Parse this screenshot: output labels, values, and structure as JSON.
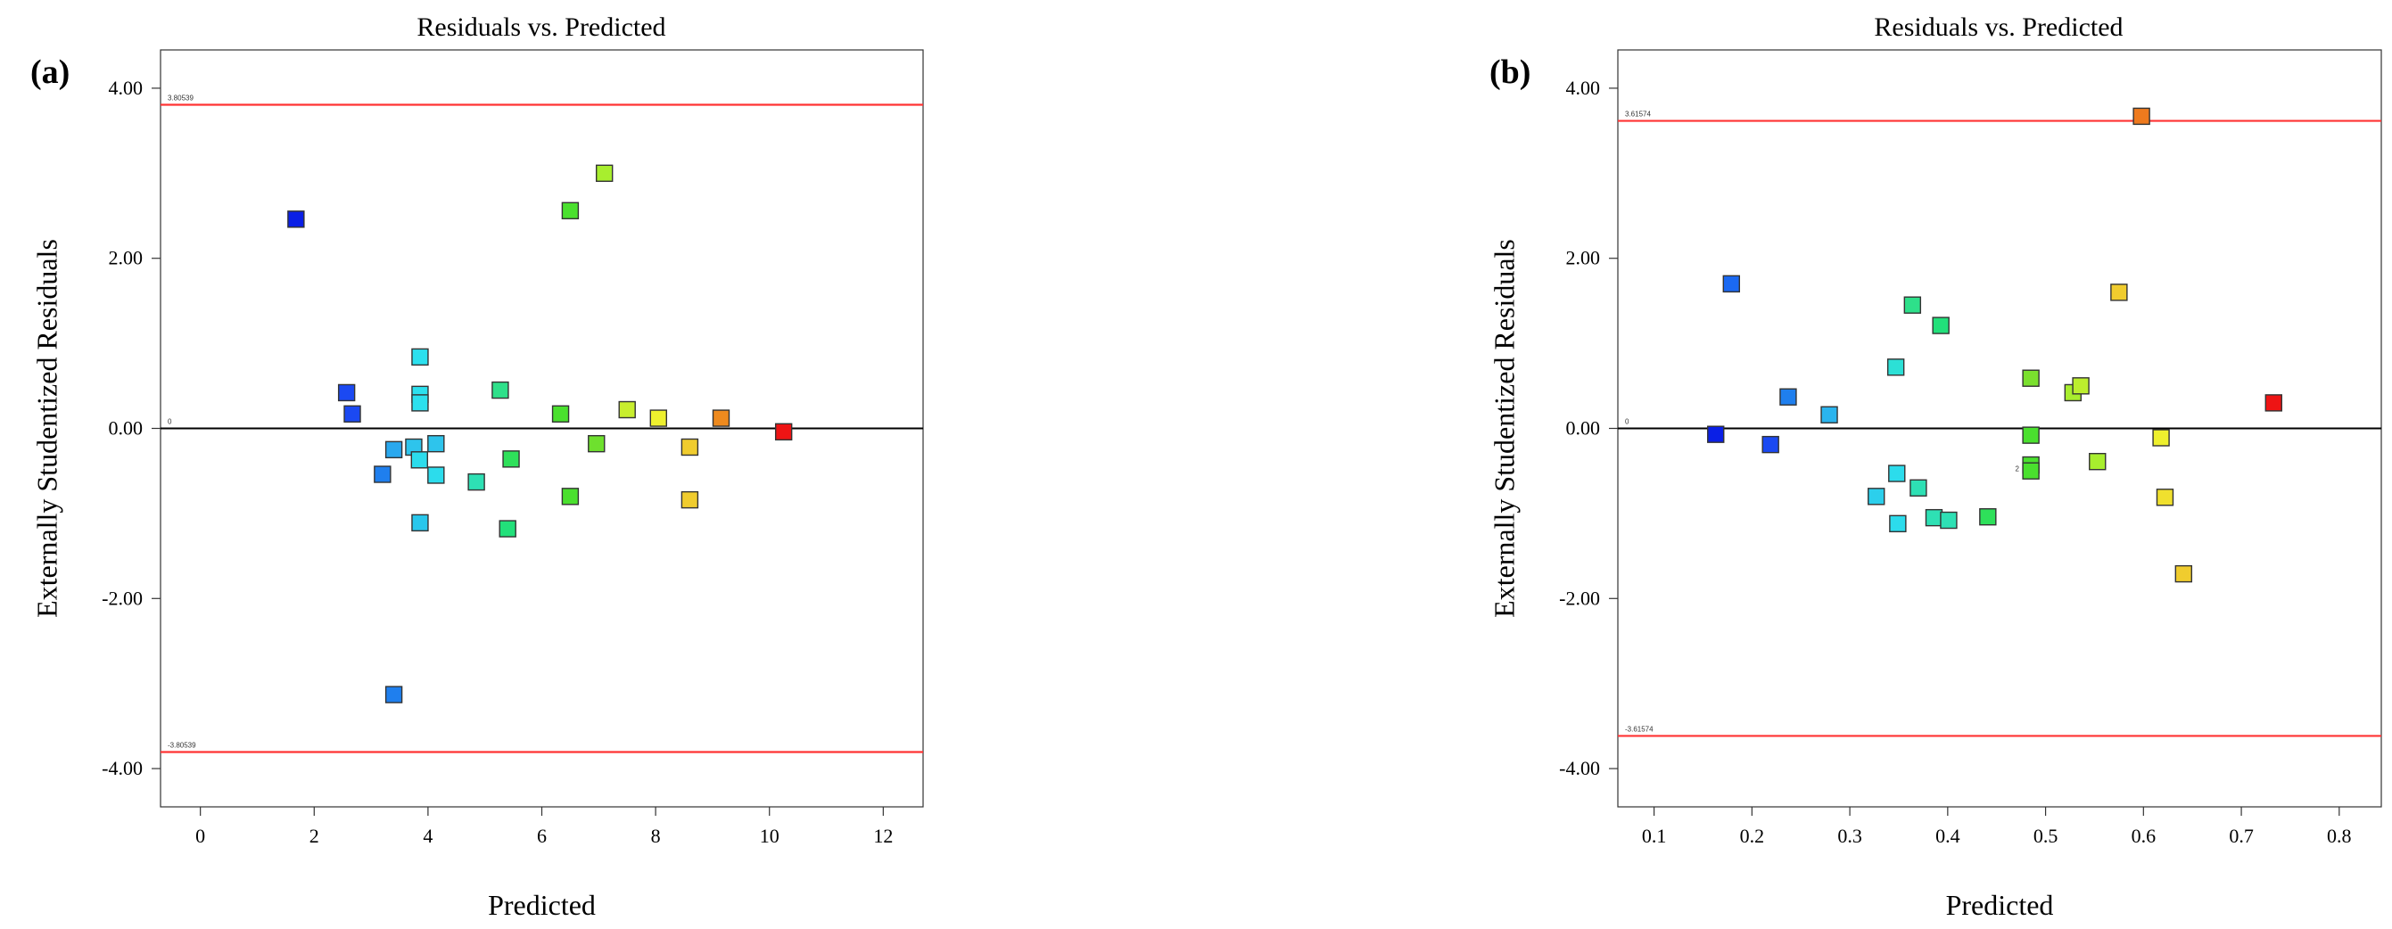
{
  "chart_data": [
    {
      "type": "scatter",
      "panel_label": "(a)",
      "title": "Residuals vs. Predicted",
      "xlabel": "Predicted",
      "ylabel": "Externally Studentized Residuals",
      "xlim": [
        -0.7,
        12.7
      ],
      "ylim": [
        -4.45,
        4.45
      ],
      "x_ticks": [
        "0",
        "2",
        "4",
        "6",
        "8",
        "10",
        "12"
      ],
      "x_tick_values": [
        0,
        2,
        4,
        6,
        8,
        10,
        12
      ],
      "y_ticks": [
        "4.00",
        "2.00",
        "0.00",
        "-2.00",
        "-4.00"
      ],
      "y_tick_values": [
        4,
        2,
        0,
        -2,
        -4
      ],
      "limit_lines": [
        {
          "label": "3.80539",
          "value": 3.80539,
          "color": "#ff3333"
        },
        {
          "label": "0",
          "value": 0,
          "color": "#000000"
        },
        {
          "label": "-3.80539",
          "value": -3.80539,
          "color": "#ff3333"
        }
      ],
      "points": [
        {
          "x": 1.68,
          "y": 2.46,
          "color": "#0a1fe6"
        },
        {
          "x": 2.57,
          "y": 0.42,
          "color": "#1b49f2"
        },
        {
          "x": 2.67,
          "y": 0.17,
          "color": "#1b49f2"
        },
        {
          "x": 3.2,
          "y": -0.54,
          "color": "#1f7fee"
        },
        {
          "x": 3.4,
          "y": -0.25,
          "color": "#2aa8ee"
        },
        {
          "x": 3.4,
          "y": -3.13,
          "color": "#1f7fee"
        },
        {
          "x": 3.75,
          "y": -0.22,
          "color": "#2ec4ec"
        },
        {
          "x": 3.85,
          "y": -0.37,
          "color": "#2cdcec"
        },
        {
          "x": 3.86,
          "y": 0.84,
          "color": "#2ce0ee"
        },
        {
          "x": 3.86,
          "y": 0.4,
          "color": "#2ce0ee"
        },
        {
          "x": 3.86,
          "y": 0.3,
          "color": "#2ce0ee"
        },
        {
          "x": 3.86,
          "y": -1.11,
          "color": "#28c7ec"
        },
        {
          "x": 4.14,
          "y": -0.18,
          "color": "#2ec4ec"
        },
        {
          "x": 4.14,
          "y": -0.55,
          "color": "#2cdcec"
        },
        {
          "x": 4.85,
          "y": -0.63,
          "color": "#2ee0b4"
        },
        {
          "x": 5.27,
          "y": 0.45,
          "color": "#2ee08a"
        },
        {
          "x": 5.4,
          "y": -1.18,
          "color": "#22e07a"
        },
        {
          "x": 5.46,
          "y": -0.36,
          "color": "#2ee05a"
        },
        {
          "x": 6.33,
          "y": 0.17,
          "color": "#4ae02e"
        },
        {
          "x": 6.5,
          "y": 2.56,
          "color": "#4ae02e"
        },
        {
          "x": 6.5,
          "y": -0.8,
          "color": "#4ae02e"
        },
        {
          "x": 6.96,
          "y": -0.18,
          "color": "#6ee02e"
        },
        {
          "x": 7.1,
          "y": 3.0,
          "color": "#a8ee2e"
        },
        {
          "x": 7.5,
          "y": 0.22,
          "color": "#c8ee2e"
        },
        {
          "x": 8.05,
          "y": 0.12,
          "color": "#eef02e"
        },
        {
          "x": 8.6,
          "y": -0.22,
          "color": "#f0cc2e"
        },
        {
          "x": 8.6,
          "y": -0.84,
          "color": "#f0cc2e"
        },
        {
          "x": 9.15,
          "y": 0.12,
          "color": "#ee8a1e"
        },
        {
          "x": 10.25,
          "y": -0.04,
          "color": "#ee1414"
        }
      ]
    },
    {
      "type": "scatter",
      "panel_label": "(b)",
      "title": "Residuals vs. Predicted",
      "xlabel": "Predicted",
      "ylabel": "Externally Studentized Residuals",
      "xlim": [
        0.063,
        0.843
      ],
      "ylim": [
        -4.45,
        4.45
      ],
      "x_ticks": [
        "0.1",
        "0.2",
        "0.3",
        "0.4",
        "0.5",
        "0.6",
        "0.7",
        "0.8"
      ],
      "x_tick_values": [
        0.1,
        0.2,
        0.3,
        0.4,
        0.5,
        0.6,
        0.7,
        0.8
      ],
      "y_ticks": [
        "4.00",
        "2.00",
        "0.00",
        "-2.00",
        "-4.00"
      ],
      "y_tick_values": [
        4,
        2,
        0,
        -2,
        -4
      ],
      "limit_lines": [
        {
          "label": "3.61574",
          "value": 3.61574,
          "color": "#ff3333"
        },
        {
          "label": "0",
          "value": 0,
          "color": "#000000"
        },
        {
          "label": "-3.61574",
          "value": -3.61574,
          "color": "#ff3333"
        }
      ],
      "annotations": [
        {
          "text": "2",
          "x": 0.473,
          "y": -0.47
        }
      ],
      "points": [
        {
          "x": 0.163,
          "y": -0.07,
          "color": "#0a1fe6"
        },
        {
          "x": 0.179,
          "y": 1.7,
          "color": "#1b69f2"
        },
        {
          "x": 0.219,
          "y": -0.19,
          "color": "#1b49f2"
        },
        {
          "x": 0.237,
          "y": 0.37,
          "color": "#1f7fee"
        },
        {
          "x": 0.279,
          "y": 0.16,
          "color": "#2ab4ee"
        },
        {
          "x": 0.327,
          "y": -0.8,
          "color": "#2ccfec"
        },
        {
          "x": 0.347,
          "y": 0.72,
          "color": "#2ce0d6"
        },
        {
          "x": 0.348,
          "y": -0.53,
          "color": "#2cdcec"
        },
        {
          "x": 0.349,
          "y": -1.12,
          "color": "#2cdcec"
        },
        {
          "x": 0.364,
          "y": 1.45,
          "color": "#2ee08a"
        },
        {
          "x": 0.37,
          "y": -0.7,
          "color": "#2ee0b4"
        },
        {
          "x": 0.386,
          "y": -1.05,
          "color": "#2ee0b4"
        },
        {
          "x": 0.393,
          "y": 1.21,
          "color": "#22e07a"
        },
        {
          "x": 0.401,
          "y": -1.08,
          "color": "#2ee0b4"
        },
        {
          "x": 0.441,
          "y": -1.04,
          "color": "#2ee05a"
        },
        {
          "x": 0.485,
          "y": 0.59,
          "color": "#7ae02e"
        },
        {
          "x": 0.485,
          "y": -0.08,
          "color": "#4ae02e"
        },
        {
          "x": 0.485,
          "y": -0.43,
          "color": "#4ae02e"
        },
        {
          "x": 0.485,
          "y": -0.5,
          "color": "#4ae02e"
        },
        {
          "x": 0.528,
          "y": 0.42,
          "color": "#a8ee2e"
        },
        {
          "x": 0.536,
          "y": 0.5,
          "color": "#bcee2e"
        },
        {
          "x": 0.553,
          "y": -0.39,
          "color": "#a8ee2e"
        },
        {
          "x": 0.575,
          "y": 1.6,
          "color": "#f0cc2e"
        },
        {
          "x": 0.598,
          "y": 3.67,
          "color": "#ee7a1e"
        },
        {
          "x": 0.618,
          "y": -0.11,
          "color": "#eef02e"
        },
        {
          "x": 0.622,
          "y": -0.81,
          "color": "#f0e02e"
        },
        {
          "x": 0.641,
          "y": -1.71,
          "color": "#f0cc2e"
        },
        {
          "x": 0.733,
          "y": 0.3,
          "color": "#ee1414"
        }
      ]
    }
  ]
}
